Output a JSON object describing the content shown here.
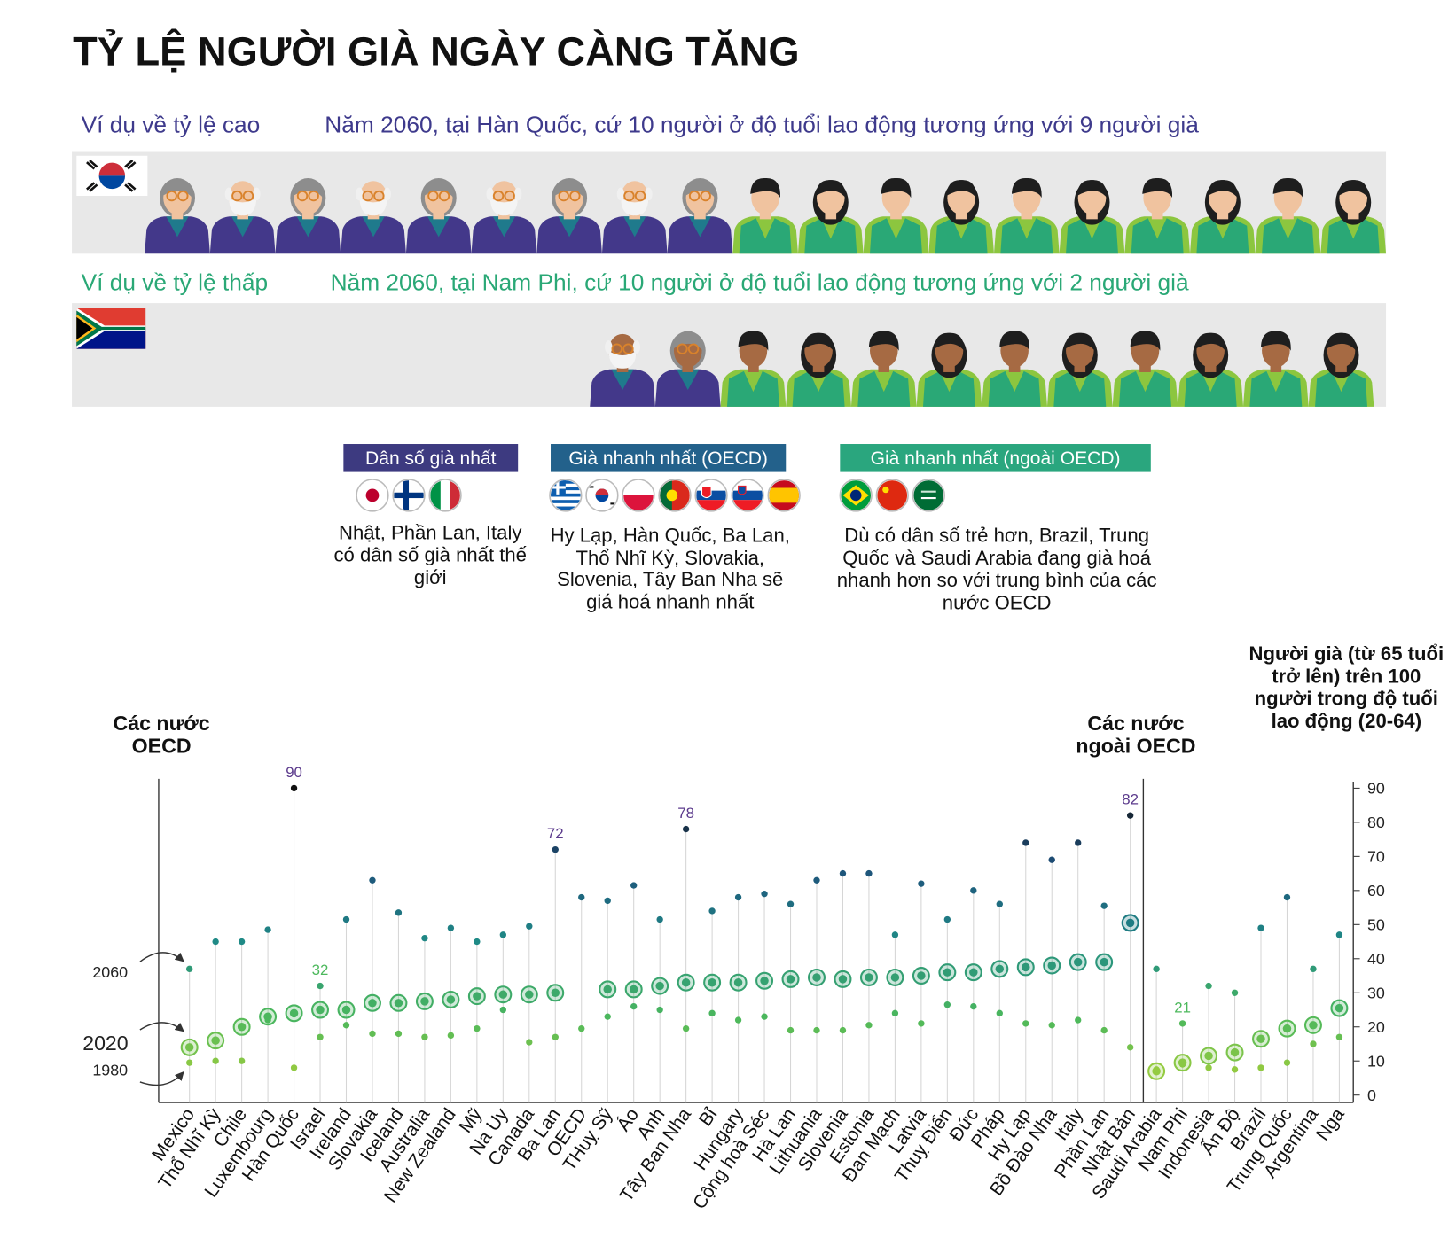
{
  "header": {
    "title": "TỶ LỆ NGƯỜI GIÀ NGÀY CÀNG TĂNG"
  },
  "examples": [
    {
      "label": "Ví dụ về tỷ lệ cao",
      "text": "Năm 2060, tại Hàn Quốc, cứ 10 người ở độ tuổi lao động tương ứng với 9 người già",
      "color": "#3e3a8c",
      "elderly": 9,
      "working": 10
    },
    {
      "label": "Ví dụ về tỷ lệ thấp",
      "text": "Năm 2060, tại Nam Phi, cứ 10 người ở độ tuổi lao động tương ứng với 2 người già",
      "color": "#2aa876",
      "elderly": 2,
      "working": 10
    }
  ],
  "groups": [
    {
      "title": "Dân số già nhất",
      "color": "#3d3a80",
      "description": "Nhật, Phần Lan, Italy có dân số già nhất thế giới"
    },
    {
      "title": "Già nhanh nhất (OECD)",
      "color": "#23618b",
      "description": "Hy Lạp, Hàn Quốc, Ba Lan, Thổ Nhĩ Kỳ, Slovakia, Slovenia, Tây Ban Nha sẽ giá hoá nhanh nhất"
    },
    {
      "title": "Già nhanh nhất (ngoài OECD)",
      "color": "#2aa67e",
      "description": "Dù có dân số trẻ hơn, Brazil, Trung Quốc và Saudi Arabia đang già hoá nhanh hơn so với trung bình của các nước OECD"
    }
  ],
  "chart_data": {
    "type": "dot",
    "annotations": [
      "Các nước OECD",
      "Các nước ngoài OECD"
    ],
    "y_label": "Người già (từ 65 tuổi trở lên) trên 100 người trong độ tuổi lao động (20-64)",
    "categories": [
      "Mexico",
      "Thổ Nhĩ Kỳ",
      "Chile",
      "Luxembourg",
      "Hàn Quốc",
      "Israel",
      "Ireland",
      "Slovakia",
      "Iceland",
      "Australia",
      "New Zealand",
      "Mỹ",
      "Na Uy",
      "Canada",
      "Ba Lan",
      "OECD",
      "THuỵ Sỹ",
      "Áo",
      "Anh",
      "Tây Ban Nha",
      "Bỉ",
      "Hungary",
      "Cộng hoà Séc",
      "Hà Lan",
      "Lithuania",
      "Slovenia",
      "Estonia",
      "Đan Mạch",
      "Latvia",
      "Thuỵ Điển",
      "Đức",
      "Pháp",
      "Hy Lạp",
      "Bồ Đào Nha",
      "Italy",
      "Phần Lan",
      "Nhật Bản",
      "Saudi Arabia",
      "Nam Phi",
      "Indonesia",
      "Ấn Độ",
      "Brazil",
      "Trung Quốc",
      "Argentina",
      "Nga"
    ],
    "series": [
      {
        "name": "1980",
        "marker": "small-dot",
        "values": [
          9.5,
          10,
          10,
          22,
          8,
          17,
          20.5,
          18,
          18,
          17,
          17.5,
          19.5,
          25,
          15.5,
          17,
          19.5,
          23,
          26,
          25,
          19.5,
          24,
          22,
          23,
          19,
          19,
          19,
          20.5,
          24,
          21,
          26.5,
          26,
          24,
          21,
          20.5,
          22,
          19,
          14,
          7.5,
          9,
          8,
          7.5,
          8,
          9.5,
          15,
          17
        ]
      },
      {
        "name": "2020",
        "marker": "ring",
        "values": [
          14,
          16,
          20,
          23,
          24,
          25,
          25,
          27,
          27,
          27.5,
          28,
          29,
          29.5,
          29.5,
          30,
          null,
          31,
          31,
          32,
          33,
          33,
          33,
          33.5,
          34,
          34.5,
          34,
          34.5,
          34.5,
          35,
          36,
          36,
          37,
          37.5,
          38,
          39,
          39,
          50.5,
          7,
          9.5,
          11.5,
          12.5,
          16.5,
          19.5,
          20.5,
          25.5
        ]
      },
      {
        "name": "2060",
        "marker": "dot",
        "values": [
          37,
          45,
          45,
          48.5,
          90,
          32,
          51.5,
          63,
          53.5,
          46,
          49,
          45,
          47,
          49.5,
          72,
          58,
          57,
          61.5,
          51.5,
          78,
          54,
          58,
          59,
          56,
          63,
          65,
          65,
          47,
          62,
          51.5,
          60,
          56,
          74,
          69,
          74,
          55.5,
          82,
          37,
          21,
          32,
          30,
          49,
          58,
          37,
          47
        ],
        "value_labels": [
          null,
          null,
          null,
          null,
          "90",
          "32",
          null,
          null,
          null,
          null,
          null,
          null,
          null,
          null,
          "72",
          null,
          null,
          null,
          null,
          "78",
          null,
          null,
          null,
          null,
          null,
          null,
          null,
          null,
          null,
          null,
          null,
          null,
          null,
          null,
          null,
          null,
          "82",
          null,
          "21",
          null,
          null,
          null,
          null,
          null,
          null
        ]
      }
    ],
    "ylim": [
      0,
      90
    ],
    "yticks": [
      0,
      10,
      20,
      30,
      40,
      50,
      60,
      70,
      80,
      90
    ],
    "y_axis_side": "right",
    "color_scale": [
      "#b5d334",
      "#4cb85c",
      "#1f8a86",
      "#1e4f7a",
      "#111111"
    ],
    "stem_color": "#d6d6d6"
  }
}
